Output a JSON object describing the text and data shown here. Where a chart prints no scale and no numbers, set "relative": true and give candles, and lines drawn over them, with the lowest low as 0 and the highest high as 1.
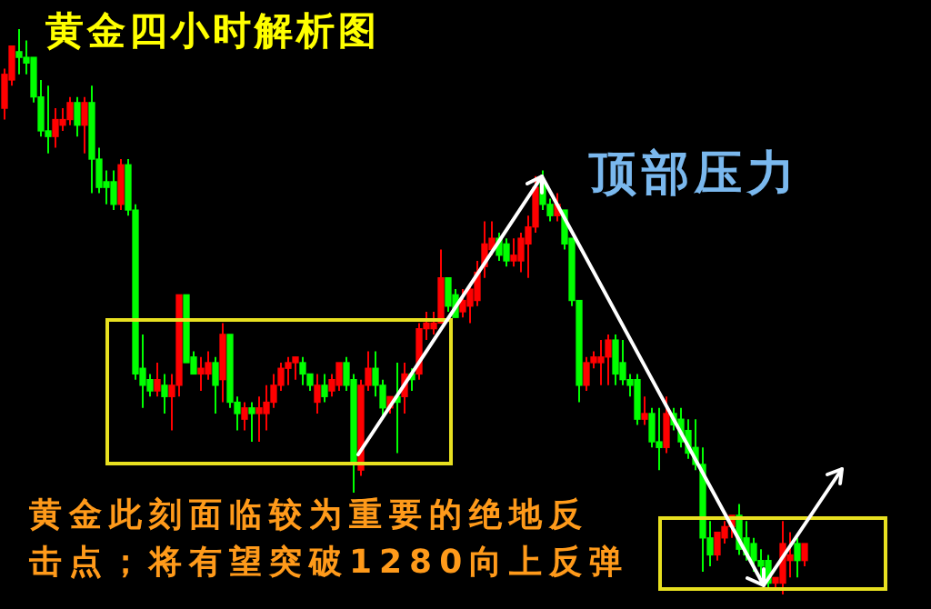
{
  "chart_data": {
    "type": "candlestick",
    "title": "黄金四小时解析图",
    "relative": true,
    "annotations": [
      "顶部压力",
      "黄金此刻面临较为重要的绝地反击点；将有望突破1280向上反弹"
    ],
    "categories": [
      null,
      null,
      null,
      null,
      null,
      null,
      null,
      null,
      null,
      null,
      null,
      null,
      null,
      null,
      null,
      null,
      null,
      null,
      null,
      null,
      null,
      null,
      null,
      null,
      null,
      null,
      null,
      null,
      null,
      null,
      null,
      null,
      null,
      null,
      null,
      null,
      null,
      null,
      null,
      null,
      null,
      null,
      null,
      null,
      null,
      null,
      null,
      null,
      null,
      null,
      null,
      null,
      null,
      null,
      null,
      null,
      null,
      null,
      null,
      null,
      null,
      null,
      null,
      null,
      null,
      null,
      null,
      null,
      null,
      null,
      null,
      null,
      null,
      null,
      null,
      null,
      null,
      null,
      null,
      null,
      null,
      null,
      null,
      null,
      null,
      null,
      null,
      null,
      null,
      null,
      null,
      null,
      null,
      null,
      null,
      null,
      null,
      null,
      null,
      null,
      null,
      null,
      null,
      null,
      null,
      null,
      null,
      null,
      null,
      null,
      null
    ],
    "ohlc": [
      [
        0.86,
        0.93,
        0.84,
        0.92
      ],
      [
        0.91,
        0.97,
        0.9,
        0.97
      ],
      [
        0.96,
        1,
        0.92,
        0.95
      ],
      [
        0.95,
        0.98,
        0.92,
        0.94
      ],
      [
        0.95,
        0.95,
        0.87,
        0.88
      ],
      [
        0.88,
        0.91,
        0.81,
        0.82
      ],
      [
        0.82,
        0.9,
        0.78,
        0.81
      ],
      [
        0.81,
        0.86,
        0.79,
        0.84
      ],
      [
        0.83,
        0.86,
        0.82,
        0.84
      ],
      [
        0.84,
        0.88,
        0.83,
        0.87
      ],
      [
        0.87,
        0.88,
        0.81,
        0.83
      ],
      [
        0.83,
        0.88,
        0.78,
        0.87
      ],
      [
        0.87,
        0.9,
        0.71,
        0.77
      ],
      [
        0.77,
        0.79,
        0.71,
        0.72
      ],
      [
        0.73,
        0.75,
        0.69,
        0.72
      ],
      [
        0.73,
        0.75,
        0.68,
        0.69
      ],
      [
        0.69,
        0.77,
        0.68,
        0.76
      ],
      [
        0.76,
        0.77,
        0.67,
        0.68
      ],
      [
        0.68,
        0.69,
        0.38,
        0.39
      ],
      [
        0.4,
        0.46,
        0.33,
        0.37
      ],
      [
        0.38,
        0.39,
        0.35,
        0.36
      ],
      [
        0.36,
        0.41,
        0.35,
        0.38
      ],
      [
        0.37,
        0.39,
        0.32,
        0.35
      ],
      [
        0.35,
        0.39,
        0.29,
        0.37
      ],
      [
        0.37,
        0.53,
        0.35,
        0.53
      ],
      [
        0.53,
        0.53,
        0.41,
        0.41
      ],
      [
        0.42,
        0.43,
        0.39,
        0.39
      ],
      [
        0.39,
        0.42,
        0.36,
        0.4
      ],
      [
        0.39,
        0.43,
        0.38,
        0.41
      ],
      [
        0.41,
        0.42,
        0.32,
        0.37
      ],
      [
        0.38,
        0.48,
        0.34,
        0.46
      ],
      [
        0.46,
        0.46,
        0.33,
        0.34
      ],
      [
        0.34,
        0.35,
        0.29,
        0.32
      ],
      [
        0.31,
        0.34,
        0.29,
        0.33
      ],
      [
        0.33,
        0.34,
        0.27,
        0.32
      ],
      [
        0.32,
        0.35,
        0.27,
        0.33
      ],
      [
        0.32,
        0.37,
        0.29,
        0.34
      ],
      [
        0.34,
        0.39,
        0.33,
        0.37
      ],
      [
        0.37,
        0.41,
        0.36,
        0.4
      ],
      [
        0.4,
        0.42,
        0.37,
        0.41
      ],
      [
        0.41,
        0.42,
        0.38,
        0.42
      ],
      [
        0.41,
        0.42,
        0.37,
        0.39
      ],
      [
        0.39,
        0.39,
        0.36,
        0.37
      ],
      [
        0.34,
        0.39,
        0.32,
        0.37
      ],
      [
        0.37,
        0.39,
        0.34,
        0.35
      ],
      [
        0.36,
        0.39,
        0.35,
        0.38
      ],
      [
        0.37,
        0.41,
        0.36,
        0.41
      ],
      [
        0.41,
        0.42,
        0.36,
        0.37
      ],
      [
        0.38,
        0.39,
        0.18,
        0.23
      ],
      [
        0.22,
        0.38,
        0.21,
        0.37
      ],
      [
        0.37,
        0.43,
        0.36,
        0.4
      ],
      [
        0.4,
        0.43,
        0.35,
        0.37
      ],
      [
        0.37,
        0.38,
        0.31,
        0.33
      ],
      [
        0.33,
        0.35,
        0.32,
        0.35
      ],
      [
        0.35,
        0.41,
        0.25,
        0.34
      ],
      [
        0.35,
        0.41,
        0.32,
        0.39
      ],
      [
        0.39,
        0.4,
        0.36,
        0.38
      ],
      [
        0.39,
        0.48,
        0.38,
        0.47
      ],
      [
        0.47,
        0.5,
        0.45,
        0.48
      ],
      [
        0.47,
        0.5,
        0.46,
        0.48
      ],
      [
        0.48,
        0.61,
        0.48,
        0.56
      ],
      [
        0.56,
        0.56,
        0.5,
        0.51
      ],
      [
        0.53,
        0.54,
        0.49,
        0.49
      ],
      [
        0.5,
        0.54,
        0.49,
        0.52
      ],
      [
        0.51,
        0.55,
        0.48,
        0.54
      ],
      [
        0.52,
        0.59,
        0.51,
        0.57
      ],
      [
        0.58,
        0.66,
        0.56,
        0.62
      ],
      [
        0.61,
        0.66,
        0.6,
        0.63
      ],
      [
        0.63,
        0.64,
        0.59,
        0.6
      ],
      [
        0.62,
        0.63,
        0.58,
        0.59
      ],
      [
        0.59,
        0.63,
        0.58,
        0.6
      ],
      [
        0.59,
        0.64,
        0.57,
        0.63
      ],
      [
        0.62,
        0.67,
        0.56,
        0.65
      ],
      [
        0.65,
        0.74,
        0.64,
        0.72
      ],
      [
        0.73,
        0.75,
        0.68,
        0.69
      ],
      [
        0.69,
        0.7,
        0.66,
        0.67
      ],
      [
        0.67,
        0.71,
        0.66,
        0.69
      ],
      [
        0.68,
        0.68,
        0.61,
        0.62
      ],
      [
        0.63,
        0.63,
        0.51,
        0.52
      ],
      [
        0.52,
        0.52,
        0.34,
        0.37
      ],
      [
        0.37,
        0.42,
        0.36,
        0.41
      ],
      [
        0.41,
        0.43,
        0.4,
        0.42
      ],
      [
        0.41,
        0.45,
        0.37,
        0.42
      ],
      [
        0.42,
        0.46,
        0.37,
        0.45
      ],
      [
        0.45,
        0.46,
        0.37,
        0.39
      ],
      [
        0.41,
        0.45,
        0.37,
        0.38
      ],
      [
        0.38,
        0.39,
        0.35,
        0.37
      ],
      [
        0.38,
        0.39,
        0.3,
        0.31
      ],
      [
        0.31,
        0.35,
        0.3,
        0.32
      ],
      [
        0.32,
        0.33,
        0.26,
        0.27
      ],
      [
        0.27,
        0.33,
        0.22,
        0.26
      ],
      [
        0.26,
        0.35,
        0.25,
        0.32
      ],
      [
        0.32,
        0.33,
        0.29,
        0.3
      ],
      [
        0.31,
        0.33,
        0.26,
        0.27
      ],
      [
        0.29,
        0.31,
        0.24,
        0.25
      ],
      [
        0.26,
        0.31,
        0.22,
        0.23
      ],
      [
        0.23,
        0.26,
        0.04,
        0.1
      ],
      [
        0.1,
        0.13,
        0.05,
        0.07
      ],
      [
        0.07,
        0.11,
        0.06,
        0.11
      ],
      [
        0.1,
        0.13,
        0.09,
        0.12
      ],
      [
        0.12,
        0.14,
        0.1,
        0.14
      ],
      [
        0.14,
        0.16,
        0.07,
        0.08
      ],
      [
        0.1,
        0.13,
        0.06,
        0.07
      ],
      [
        0.09,
        0.1,
        0.04,
        0.06
      ],
      [
        0.06,
        0.08,
        0.03,
        0.05
      ],
      [
        0.06,
        0.07,
        0.01,
        0.02
      ],
      [
        0.02,
        0.03,
        0.01,
        0.03
      ],
      [
        0.02,
        0.13,
        0,
        0.09
      ],
      [
        0.06,
        0.11,
        0.03,
        0.07
      ],
      [
        0.09,
        0.1,
        0.03,
        0.06
      ],
      [
        0.06,
        0.09,
        0.05,
        0.09
      ]
    ],
    "colors": [
      "#ff0000",
      "#ff0000",
      "#00ff00",
      "#00ff00",
      "#00ff00",
      "#00ff00",
      "#00ff00",
      "#ff0000",
      "#ff0000",
      "#ff0000",
      "#00ff00",
      "#ff0000",
      "#00ff00",
      "#00ff00",
      "#00ff00",
      "#00ff00",
      "#ff0000",
      "#00ff00",
      "#00ff00",
      "#00ff00",
      "#00ff00",
      "#ff0000",
      "#00ff00",
      "#ff0000",
      "#ff0000",
      "#00ff00",
      "#00ff00",
      "#ff0000",
      "#ff0000",
      "#00ff00",
      "#ff0000",
      "#00ff00",
      "#00ff00",
      "#ff0000",
      "#00ff00",
      "#ff0000",
      "#ff0000",
      "#ff0000",
      "#ff0000",
      "#ff0000",
      "#ff0000",
      "#00ff00",
      "#00ff00",
      "#ff0000",
      "#00ff00",
      "#ff0000",
      "#ff0000",
      "#00ff00",
      "#00ff00",
      "#ff0000",
      "#ff0000",
      "#00ff00",
      "#00ff00",
      "#ff0000",
      "#00ff00",
      "#ff0000",
      "#00ff00",
      "#ff0000",
      "#ff0000",
      "#ff0000",
      "#ff0000",
      "#00ff00",
      "#00ff00",
      "#ff0000",
      "#ff0000",
      "#ff0000",
      "#ff0000",
      "#ff0000",
      "#00ff00",
      "#00ff00",
      "#ff0000",
      "#ff0000",
      "#ff0000",
      "#ff0000",
      "#00ff00",
      "#00ff00",
      "#ff0000",
      "#00ff00",
      "#00ff00",
      "#00ff00",
      "#ff0000",
      "#ff0000",
      "#ff0000",
      "#ff0000",
      "#00ff00",
      "#00ff00",
      "#00ff00",
      "#00ff00",
      "#ff0000",
      "#00ff00",
      "#00ff00",
      "#ff0000",
      "#00ff00",
      "#00ff00",
      "#00ff00",
      "#00ff00",
      "#00ff00",
      "#00ff00",
      "#ff0000",
      "#ff0000",
      "#ff0000",
      "#00ff00",
      "#00ff00",
      "#00ff00",
      "#00ff00",
      "#00ff00",
      "#ff0000",
      "#ff0000",
      "#ff0000",
      "#00ff00",
      "#ff0000"
    ]
  }
}
